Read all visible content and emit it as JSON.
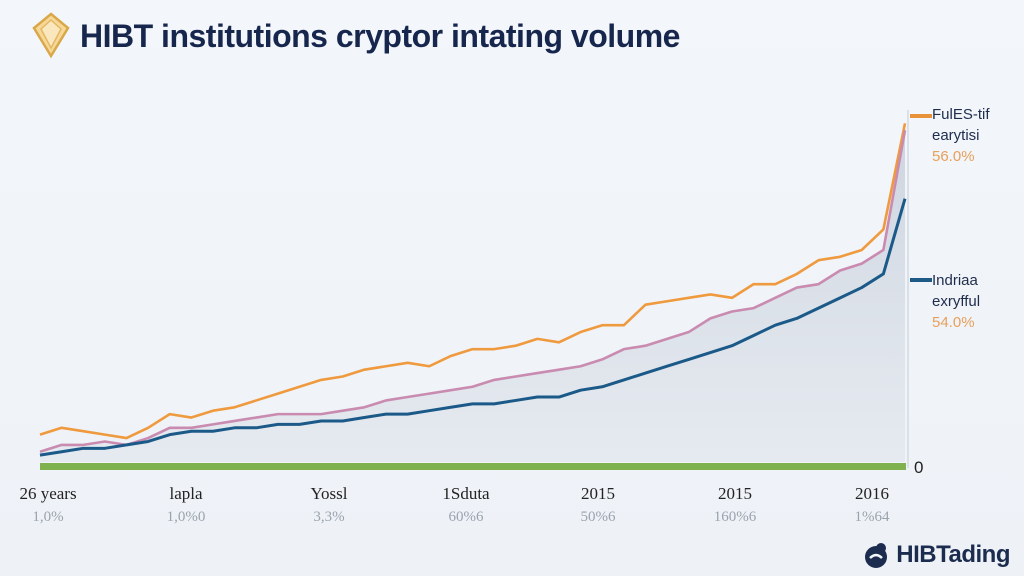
{
  "header": {
    "title": "HIBT institutions cryptor intating volume"
  },
  "brand": {
    "name": "HIBTading"
  },
  "x_axis": [
    {
      "label": "26 years",
      "pct": "1,0%"
    },
    {
      "label": "lapla",
      "pct": "1,0%0"
    },
    {
      "label": "Yossl",
      "pct": "3,3%"
    },
    {
      "label": "1Sduta",
      "pct": "60%6"
    },
    {
      "label": "2015",
      "pct": "50%6"
    },
    {
      "label": "2015",
      "pct": "160%6"
    },
    {
      "label": "2016",
      "pct": "1%64"
    }
  ],
  "legend": [
    {
      "line1": "FulES-tif",
      "line2": "earytisi",
      "pct": "56.0%",
      "color": "#e8923a"
    },
    {
      "line1": "Indriaa",
      "line2": "exryfful",
      "pct": "54.0%",
      "color": "#1e5a85"
    }
  ],
  "zero_label": "0",
  "colors": {
    "orange": "#ef9a3e",
    "pink": "#c98bb0",
    "navy": "#1b5a88",
    "baseline": "#7fb24e",
    "title": "#16264d"
  },
  "chart_data": {
    "type": "line",
    "x": [
      0,
      1,
      2,
      3,
      4,
      5,
      6,
      7,
      8,
      9,
      10,
      11,
      12,
      13,
      14,
      15,
      16,
      17,
      18,
      19,
      20,
      21,
      22,
      23,
      24,
      25,
      26,
      27,
      28,
      29,
      30,
      31,
      32,
      33,
      34,
      35,
      36,
      37,
      38,
      39,
      40
    ],
    "ylim": [
      0,
      100
    ],
    "series": [
      {
        "color": "#ef9a3e",
        "values": [
          8,
          10,
          9,
          8,
          7,
          10,
          14,
          13,
          15,
          16,
          18,
          20,
          22,
          24,
          25,
          27,
          28,
          29,
          28,
          31,
          33,
          33,
          34,
          36,
          35,
          38,
          40,
          40,
          46,
          47,
          48,
          49,
          48,
          52,
          52,
          55,
          59,
          60,
          62,
          68,
          99
        ]
      },
      {
        "color": "#c98bb0",
        "values": [
          3,
          5,
          5,
          6,
          5,
          7,
          10,
          10,
          11,
          12,
          13,
          14,
          14,
          14,
          15,
          16,
          18,
          19,
          20,
          21,
          22,
          24,
          25,
          26,
          27,
          28,
          30,
          33,
          34,
          36,
          38,
          42,
          44,
          45,
          48,
          51,
          52,
          56,
          58,
          62,
          97
        ]
      },
      {
        "color": "#1b5a88",
        "values": [
          2,
          3,
          4,
          4,
          5,
          6,
          8,
          9,
          9,
          10,
          10,
          11,
          11,
          12,
          12,
          13,
          14,
          14,
          15,
          16,
          17,
          17,
          18,
          19,
          19,
          21,
          22,
          24,
          26,
          28,
          30,
          32,
          34,
          37,
          40,
          42,
          45,
          48,
          51,
          55,
          77
        ]
      }
    ]
  }
}
